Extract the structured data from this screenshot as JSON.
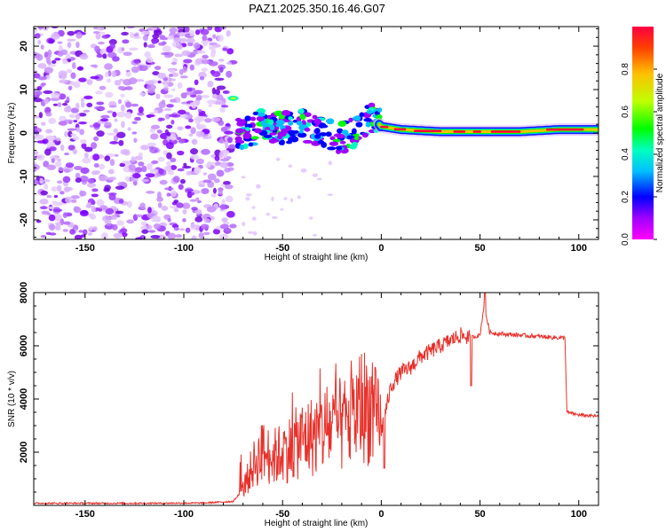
{
  "chart_data": [
    {
      "type": "heatmap",
      "title": "PAZ1.2025.350.16.46.G07",
      "xlabel": "Height of straight line (km)",
      "ylabel": "Frequency (Hz)",
      "xlim": [
        -176,
        110
      ],
      "ylim": [
        -24.5,
        24.5
      ],
      "xticks": [
        -150,
        -100,
        -50,
        0,
        50,
        100
      ],
      "xtick_labels": [
        "-150",
        "-100",
        "-50",
        "0",
        "50",
        "100"
      ],
      "yticks": [
        20,
        10,
        0,
        -10,
        -20
      ],
      "ytick_labels": [
        "20",
        "10",
        "0",
        "-10",
        "-20"
      ],
      "colorbar": {
        "label": "Normalized spectral amplitude",
        "range": [
          0.0,
          1.0
        ],
        "ticks": [
          0.0,
          0.2,
          0.4,
          0.6,
          0.8
        ],
        "tick_labels": [
          "0.0",
          "0.2",
          "0.4",
          "0.6",
          "0.8"
        ],
        "colormap": [
          "#ff00ff",
          "#a000ff",
          "#0000ff",
          "#00bfff",
          "#00ffbf",
          "#00ff00",
          "#bfff00",
          "#ffbf00",
          "#ff4000",
          "#ff0040"
        ]
      },
      "noise_region_x": [
        -176,
        -75
      ],
      "signal_track": [
        {
          "x": -75,
          "y": 8
        },
        {
          "x": -72,
          "y": -1
        },
        {
          "x": -60,
          "y": 2
        },
        {
          "x": -50,
          "y": 1
        },
        {
          "x": -40,
          "y": 2
        },
        {
          "x": -30,
          "y": 0
        },
        {
          "x": -20,
          "y": -1
        },
        {
          "x": -12,
          "y": 0
        },
        {
          "x": -8,
          "y": 3
        },
        {
          "x": -5,
          "y": 4
        },
        {
          "x": 0,
          "y": 1.5
        },
        {
          "x": 10,
          "y": 0.8
        },
        {
          "x": 30,
          "y": 0.3
        },
        {
          "x": 50,
          "y": 0.3
        },
        {
          "x": 70,
          "y": 0.3
        },
        {
          "x": 90,
          "y": 0.8
        },
        {
          "x": 110,
          "y": 0.8
        }
      ],
      "grid": false
    },
    {
      "type": "line",
      "xlabel": "Height of straight line (km)",
      "ylabel": "SNR (10 * v/v)",
      "xlim": [
        -176,
        110
      ],
      "ylim": [
        0,
        8000
      ],
      "xticks": [
        -150,
        -100,
        -50,
        0,
        50,
        100
      ],
      "xtick_labels": [
        "-150",
        "-100",
        "-50",
        "0",
        "50",
        "100"
      ],
      "yticks": [
        2000,
        4000,
        6000,
        8000
      ],
      "ytick_labels": [
        "2000",
        "4000",
        "6000",
        "8000"
      ],
      "series": [
        {
          "name": "SNR",
          "color": "#e8302a",
          "x": [
            -176,
            -150,
            -120,
            -90,
            -75,
            -70,
            -65,
            -60,
            -55,
            -50,
            -45,
            -40,
            -35,
            -30,
            -25,
            -20,
            -15,
            -10,
            -5,
            0,
            5,
            10,
            15,
            20,
            25,
            30,
            35,
            40,
            45,
            50,
            52,
            55,
            60,
            70,
            80,
            90,
            93,
            94,
            100,
            110
          ],
          "y": [
            80,
            80,
            80,
            90,
            150,
            600,
            1500,
            2000,
            1800,
            2000,
            2200,
            2500,
            2600,
            2800,
            3000,
            3000,
            3200,
            3800,
            3600,
            2800,
            4500,
            5000,
            5200,
            5600,
            5800,
            6000,
            6200,
            6400,
            6300,
            6400,
            7500,
            6500,
            6450,
            6400,
            6350,
            6300,
            6300,
            3500,
            3400,
            3350
          ]
        }
      ],
      "grid": false
    }
  ]
}
